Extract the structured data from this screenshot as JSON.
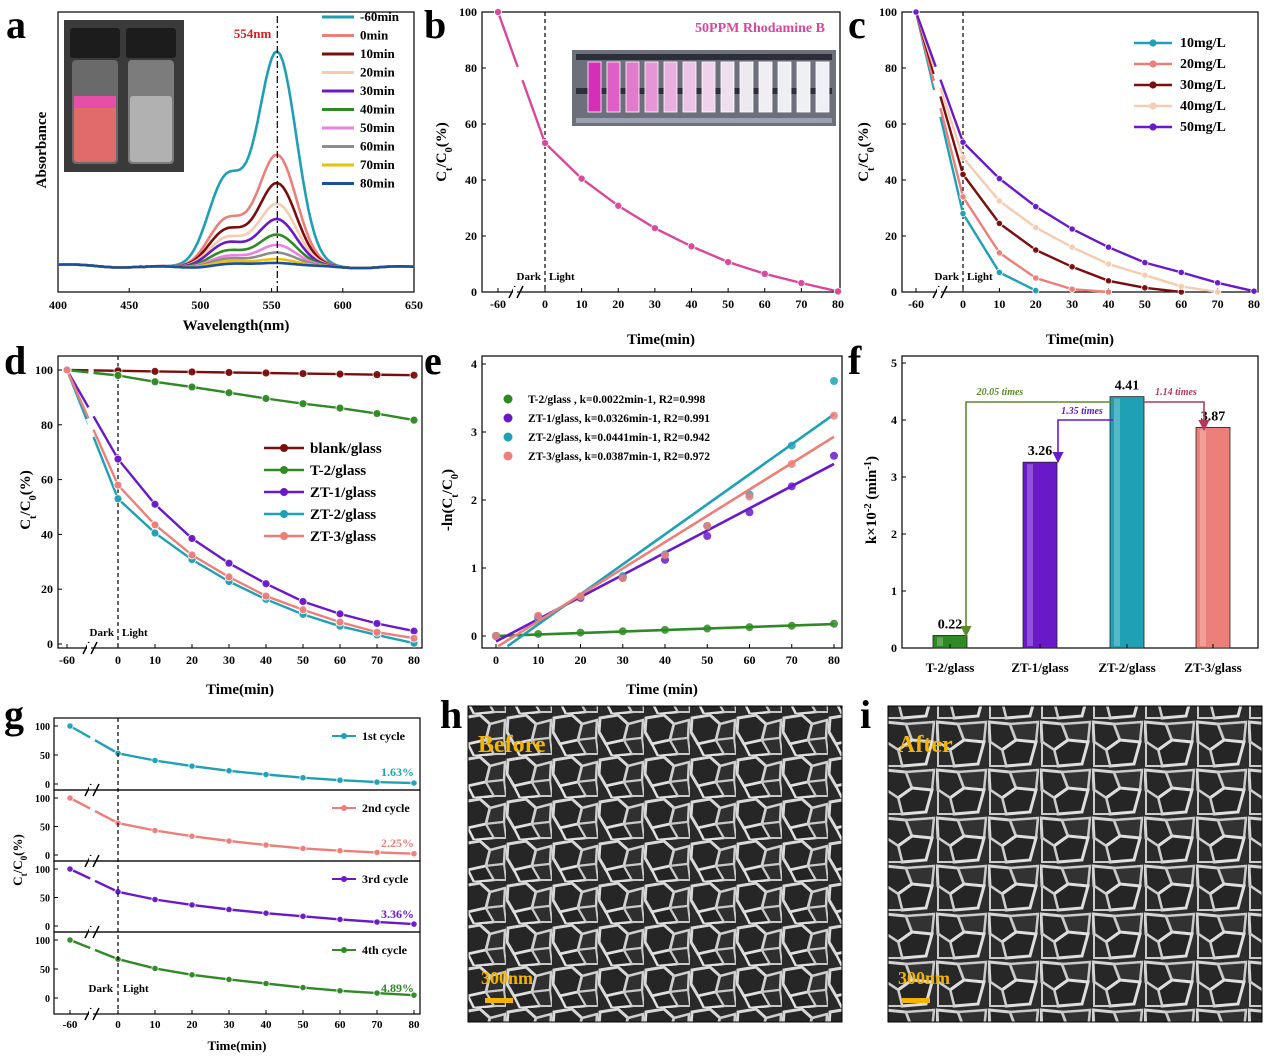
{
  "figure": {
    "panel_letters": [
      "a",
      "b",
      "c",
      "d",
      "e",
      "f",
      "g",
      "h",
      "i"
    ]
  },
  "chart_data": [
    {
      "panel": "a",
      "type": "line",
      "xlabel": "Wavelength(nm)",
      "ylabel": "Absorbance",
      "xlim": [
        400,
        650
      ],
      "xticks": [
        400,
        450,
        500,
        550,
        600,
        650
      ],
      "ylim": [
        0,
        1.0
      ],
      "peak_label": "554nm",
      "peak_x": 554,
      "legend_position": "top-right",
      "series": [
        {
          "name": "-60min",
          "color": "#1f9fb4",
          "peak": 0.84,
          "shoulder": 0.34
        },
        {
          "name": "0min",
          "color": "#ec7f7a",
          "peak": 0.44,
          "shoulder": 0.18
        },
        {
          "name": "10min",
          "color": "#7a0d0d",
          "peak": 0.33,
          "shoulder": 0.14
        },
        {
          "name": "20min",
          "color": "#f6ccb0",
          "peak": 0.25,
          "shoulder": 0.11
        },
        {
          "name": "30min",
          "color": "#6a19c9",
          "peak": 0.19,
          "shoulder": 0.09
        },
        {
          "name": "40min",
          "color": "#2f8a25",
          "peak": 0.13,
          "shoulder": 0.06
        },
        {
          "name": "50min",
          "color": "#ea82e0",
          "peak": 0.09,
          "shoulder": 0.04
        },
        {
          "name": "60min",
          "color": "#8d8d8d",
          "peak": 0.06,
          "shoulder": 0.03
        },
        {
          "name": "70min",
          "color": "#e7c10e",
          "peak": 0.035,
          "shoulder": 0.02
        },
        {
          "name": "80min",
          "color": "#1c4f9a",
          "peak": 0.02,
          "shoulder": 0.01
        }
      ]
    },
    {
      "panel": "b",
      "type": "line",
      "title": "50PPM Rhodamine B",
      "xlabel": "Time(min)",
      "ylabel": "Ct/C0(%)",
      "x": [
        -60,
        0,
        10,
        20,
        30,
        40,
        50,
        60,
        70,
        80
      ],
      "xticks": [
        -60,
        0,
        10,
        20,
        30,
        40,
        50,
        60,
        70,
        80
      ],
      "ylim": [
        0,
        100
      ],
      "yticks": [
        0,
        20,
        40,
        60,
        80,
        100
      ],
      "dark_label": "Dark",
      "light_label": "Light",
      "series": [
        {
          "color": "#d9479d",
          "values": [
            100,
            53.2,
            40.5,
            30.8,
            22.8,
            16.3,
            10.7,
            6.5,
            3.2,
            0.2
          ]
        }
      ]
    },
    {
      "panel": "c",
      "type": "line",
      "xlabel": "Time(min)",
      "ylabel": "Ct/C0(%)",
      "x": [
        -60,
        0,
        10,
        20,
        30,
        40,
        50,
        60,
        70,
        80
      ],
      "xticks": [
        -60,
        0,
        10,
        20,
        30,
        40,
        50,
        60,
        70,
        80
      ],
      "ylim": [
        0,
        100
      ],
      "yticks": [
        0,
        20,
        40,
        60,
        80,
        100
      ],
      "dark_label": "Dark",
      "light_label": "Light",
      "legend_position": "top-right",
      "series": [
        {
          "name": "10mg/L",
          "color": "#1ea1b4",
          "values": [
            100,
            28,
            7,
            0.5,
            null,
            null,
            null,
            null,
            null,
            null
          ]
        },
        {
          "name": "20mg/L",
          "color": "#ec7f7a",
          "values": [
            100,
            34,
            14,
            5,
            1,
            0,
            null,
            null,
            null,
            null
          ]
        },
        {
          "name": "30mg/L",
          "color": "#7a0d0d",
          "values": [
            100,
            42,
            24.5,
            15,
            9,
            4,
            1.5,
            0,
            null,
            null
          ]
        },
        {
          "name": "40mg/L",
          "color": "#f6ccb0",
          "values": [
            100,
            48,
            32.5,
            23,
            16,
            10,
            6,
            2,
            0,
            null
          ]
        },
        {
          "name": "50mg/L",
          "color": "#6a19c9",
          "values": [
            100,
            53.5,
            40.5,
            30.5,
            22.5,
            16,
            10.5,
            7,
            3.3,
            0.3
          ]
        }
      ]
    },
    {
      "panel": "d",
      "type": "line",
      "xlabel": "Time(min)",
      "ylabel": "Ct/C0(%)",
      "x": [
        -60,
        0,
        10,
        20,
        30,
        40,
        50,
        60,
        70,
        80
      ],
      "xticks": [
        -60,
        0,
        10,
        20,
        30,
        40,
        50,
        60,
        70,
        80
      ],
      "ylim": [
        0,
        100
      ],
      "yticks": [
        0,
        20,
        40,
        60,
        80,
        100
      ],
      "dark_label": "Dark",
      "light_label": "Light",
      "legend_position": "center-right",
      "series": [
        {
          "name": "blank/glass",
          "color": "#7a0d0d",
          "values": [
            100,
            99.7,
            99.5,
            99.3,
            99.1,
            98.9,
            98.7,
            98.5,
            98.3,
            98.1
          ]
        },
        {
          "name": "T-2/glass",
          "color": "#2f8a25",
          "values": [
            100,
            98,
            95.7,
            93.8,
            91.7,
            89.6,
            87.7,
            86.1,
            84.1,
            81.7
          ]
        },
        {
          "name": "ZT-1/glass",
          "color": "#6a19c9",
          "values": [
            100,
            67.5,
            51,
            38.5,
            29.5,
            22,
            15.5,
            11,
            7.5,
            4.7
          ]
        },
        {
          "name": "ZT-2/glass",
          "color": "#1ea1b4",
          "values": [
            100,
            53,
            40.5,
            30.8,
            22.8,
            16.3,
            10.8,
            6.5,
            3.3,
            0.3
          ]
        },
        {
          "name": "ZT-3/glass",
          "color": "#ec7f7a",
          "values": [
            100,
            58,
            43.5,
            32.5,
            24.5,
            17.5,
            12.5,
            8,
            4.3,
            2.1
          ]
        }
      ]
    },
    {
      "panel": "e",
      "type": "scatter",
      "xlabel": "Time (min)",
      "ylabel": "-ln(Ct/C0)",
      "x": [
        0,
        10,
        20,
        30,
        40,
        50,
        60,
        70,
        80
      ],
      "xticks": [
        0,
        10,
        20,
        30,
        40,
        50,
        60,
        70,
        80
      ],
      "ylim": [
        0,
        4
      ],
      "yticks": [
        0,
        1,
        2,
        3,
        4
      ],
      "legend_position": "top-left",
      "series": [
        {
          "name": "T-2/glass   , k=0.0022min-1, R2=0.998",
          "color": "#2f8a25",
          "values": [
            0.0,
            0.03,
            0.05,
            0.07,
            0.09,
            0.11,
            0.13,
            0.15,
            0.18
          ],
          "fit": [
            0.0,
            0.176
          ]
        },
        {
          "name": "ZT-1/glass, k=0.0326min-1, R2=0.991",
          "color": "#6a19c9",
          "values": [
            0.0,
            0.28,
            0.56,
            0.86,
            1.12,
            1.47,
            1.82,
            2.2,
            2.65
          ],
          "fit": [
            -0.08,
            2.53
          ]
        },
        {
          "name": "ZT-2/glass, k=0.0441min-1, R2=0.942",
          "color": "#1ea1b4",
          "values": [
            0.0,
            0.25,
            0.58,
            0.88,
            1.2,
            1.62,
            2.08,
            2.8,
            3.75
          ],
          "fit": [
            -0.27,
            3.26
          ]
        },
        {
          "name": "ZT-3/glass, k=0.0387min-1, R2=0.972",
          "color": "#ec7f7a",
          "values": [
            0.0,
            0.3,
            0.58,
            0.85,
            1.19,
            1.62,
            2.05,
            2.53,
            3.24
          ],
          "fit": [
            -0.17,
            2.93
          ]
        }
      ]
    },
    {
      "panel": "f",
      "type": "bar",
      "ylabel": "k×10-2 (min-1)",
      "ylim": [
        0,
        5
      ],
      "yticks": [
        0,
        1,
        2,
        3,
        4,
        5
      ],
      "categories": [
        "T-2/glass",
        "ZT-1/glass",
        "ZT-2/glass",
        "ZT-3/glass"
      ],
      "values": [
        0.22,
        3.26,
        4.41,
        3.87
      ],
      "value_labels": [
        "0.22",
        "3.26",
        "4.41",
        "3.87"
      ],
      "colors": [
        "#2f8a25",
        "#6a19c9",
        "#1ea1b4",
        "#ec7f7a"
      ],
      "annotations": [
        {
          "text": "20.05 times",
          "color": "#5e8a2a"
        },
        {
          "text": "1.35 times",
          "color": "#6a19c9"
        },
        {
          "text": "1.14 times",
          "color": "#b03a5b"
        }
      ]
    },
    {
      "panel": "g",
      "type": "line",
      "xlabel": "Time(min)",
      "ylabel": "Ct/C0(%)",
      "x": [
        -60,
        0,
        10,
        20,
        30,
        40,
        50,
        60,
        70,
        80
      ],
      "xticks": [
        -60,
        0,
        10,
        20,
        30,
        40,
        50,
        60,
        70,
        80
      ],
      "yticks": [
        0,
        50,
        100
      ],
      "dark_label": "Dark",
      "light_label": "Light",
      "series": [
        {
          "name": "1st cycle",
          "final_label": "1.63%",
          "color": "#1ea1b4",
          "values": [
            100,
            53,
            40.5,
            30.8,
            22.8,
            16.3,
            10.8,
            6.5,
            3.3,
            1.63
          ]
        },
        {
          "name": "2nd cycle",
          "final_label": "2.25%",
          "color": "#ec7f7a",
          "values": [
            100,
            56,
            43,
            33,
            24.5,
            17.5,
            11.5,
            7.5,
            4.5,
            2.25
          ]
        },
        {
          "name": "3rd cycle",
          "final_label": "3.36%",
          "color": "#6a19c9",
          "values": [
            100,
            60,
            46.5,
            37,
            29,
            22.5,
            17,
            11.5,
            7,
            3.36
          ]
        },
        {
          "name": "4th cycle",
          "final_label": "4.89%",
          "color": "#2f8a25",
          "values": [
            100,
            67,
            51,
            40,
            32,
            25,
            18,
            12.5,
            8.5,
            4.89
          ]
        }
      ]
    }
  ],
  "images": {
    "h": {
      "label": "Before",
      "scale": "300nm"
    },
    "i": {
      "label": "After",
      "scale": "300nm"
    }
  }
}
